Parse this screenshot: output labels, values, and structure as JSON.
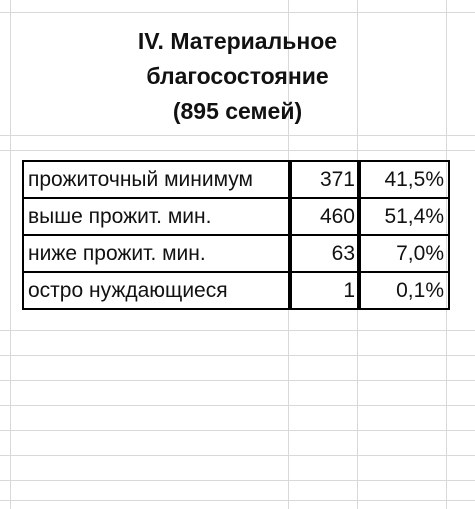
{
  "header": {
    "title_lines": [
      "IV. Материальное",
      "благосостояние",
      "(895 семей)"
    ]
  },
  "table": {
    "rows": [
      [
        "прожиточный минимум",
        "371",
        "41,5%"
      ],
      [
        "выше прожит. мин.",
        "460",
        "51,4%"
      ],
      [
        "ниже прожит. мин.",
        "63",
        "7,0%"
      ],
      [
        "остро нуждающиеся",
        "1",
        "0,1%"
      ]
    ]
  }
}
